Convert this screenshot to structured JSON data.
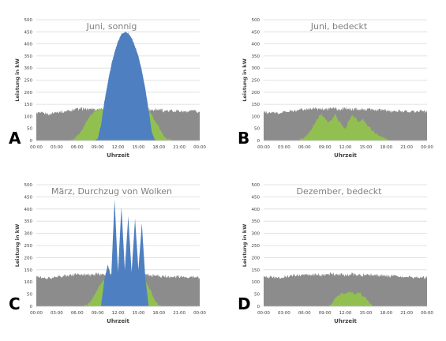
{
  "chart_data": [
    {
      "type": "area",
      "panel_letter": "A",
      "title": "Juni, sonnig",
      "xlabel": "Uhrzeit",
      "ylabel": "Leistung in kW",
      "ylim": [
        0,
        500
      ],
      "yticks": [
        "0",
        "50",
        "100",
        "150",
        "200",
        "250",
        "300",
        "350",
        "400",
        "450",
        "500"
      ],
      "xticks": [
        "00:00",
        "03:00",
        "06:00",
        "09:00",
        "12:00",
        "15:00",
        "18:00",
        "21:00",
        "00:00"
      ],
      "x_hours": [
        0,
        1,
        2,
        3,
        4,
        5,
        5.5,
        6,
        6.5,
        7,
        7.5,
        8,
        8.5,
        9,
        9.5,
        10,
        10.5,
        11,
        11.5,
        12,
        12.5,
        13,
        13.5,
        14,
        14.5,
        15,
        15.5,
        16,
        16.5,
        17,
        17.5,
        18,
        18.5,
        19,
        20,
        21,
        22,
        23,
        24
      ],
      "series": [
        {
          "values": [
            115,
            112,
            110,
            118,
            120,
            125,
            128,
            130,
            132,
            130,
            128,
            135,
            130,
            125,
            132,
            128,
            130,
            125,
            128,
            130,
            127,
            125,
            130,
            128,
            126,
            130,
            128,
            132,
            130,
            125,
            128,
            130,
            125,
            120,
            125,
            122,
            118,
            120,
            118
          ]
        },
        {
          "values": [
            0,
            0,
            0,
            0,
            0,
            0,
            5,
            15,
            35,
            60,
            85,
            105,
            120,
            125,
            130,
            128,
            132,
            126,
            130,
            128,
            130,
            128,
            132,
            125,
            130,
            128,
            130,
            125,
            120,
            105,
            80,
            55,
            30,
            10,
            0,
            0,
            0,
            0,
            0
          ]
        },
        {
          "values": [
            0,
            0,
            0,
            0,
            0,
            0,
            0,
            0,
            0,
            0,
            0,
            0,
            0,
            5,
            65,
            160,
            240,
            310,
            365,
            410,
            440,
            450,
            445,
            425,
            390,
            350,
            290,
            215,
            125,
            30,
            0,
            0,
            0,
            0,
            0,
            0,
            0,
            0,
            0
          ]
        }
      ]
    },
    {
      "type": "area",
      "panel_letter": "B",
      "title": "Juni, bedeckt",
      "xlabel": "Uhrzeit",
      "ylabel": "Leistung in kW",
      "ylim": [
        0,
        500
      ],
      "yticks": [
        "0",
        "50",
        "100",
        "150",
        "200",
        "250",
        "300",
        "350",
        "400",
        "450",
        "500"
      ],
      "xticks": [
        "00:00",
        "03:00",
        "06:00",
        "09:00",
        "12:00",
        "15:00",
        "18:00",
        "21:00",
        "00:00"
      ],
      "x_hours": [
        0,
        1,
        2,
        3,
        4,
        5,
        5.5,
        6,
        6.5,
        7,
        7.5,
        8,
        8.5,
        9,
        9.5,
        10,
        10.5,
        11,
        11.5,
        12,
        12.5,
        13,
        13.5,
        14,
        14.5,
        15,
        15.5,
        16,
        16.5,
        17,
        17.5,
        18,
        18.5,
        19,
        20,
        21,
        22,
        23,
        24
      ],
      "series": [
        {
          "values": [
            118,
            115,
            112,
            118,
            120,
            125,
            130,
            128,
            132,
            130,
            135,
            128,
            132,
            130,
            128,
            135,
            132,
            128,
            130,
            135,
            130,
            128,
            132,
            130,
            128,
            125,
            130,
            128,
            126,
            125,
            128,
            126,
            122,
            120,
            125,
            120,
            118,
            122,
            118
          ]
        },
        {
          "values": [
            0,
            0,
            0,
            0,
            0,
            0,
            5,
            12,
            25,
            45,
            70,
            95,
            110,
            90,
            75,
            85,
            110,
            80,
            65,
            45,
            85,
            105,
            95,
            75,
            90,
            70,
            55,
            40,
            30,
            20,
            12,
            5,
            0,
            0,
            0,
            0,
            0,
            0,
            0
          ]
        }
      ]
    },
    {
      "type": "area",
      "panel_letter": "C",
      "title": "März, Durchzug von Wolken",
      "xlabel": "Uhrzeit",
      "ylabel": "Leistung in kW",
      "ylim": [
        0,
        500
      ],
      "yticks": [
        "0",
        "50",
        "100",
        "150",
        "200",
        "250",
        "300",
        "350",
        "400",
        "450",
        "500"
      ],
      "xticks": [
        "00:00",
        "03:00",
        "06:00",
        "09:00",
        "12:00",
        "15:00",
        "18:00",
        "21:00",
        "00:00"
      ],
      "x_hours": [
        0,
        1,
        2,
        3,
        4,
        5,
        5.5,
        6,
        6.5,
        7,
        7.5,
        8,
        8.5,
        9,
        9.5,
        10,
        10.5,
        11,
        11.5,
        12,
        12.5,
        13,
        13.5,
        14,
        14.5,
        15,
        15.5,
        16,
        16.5,
        17,
        17.5,
        18,
        18.5,
        19,
        20,
        21,
        22,
        23,
        24
      ],
      "series": [
        {
          "values": [
            122,
            118,
            115,
            120,
            125,
            128,
            130,
            132,
            128,
            130,
            132,
            128,
            130,
            135,
            130,
            132,
            128,
            130,
            135,
            130,
            132,
            128,
            130,
            132,
            130,
            128,
            130,
            132,
            128,
            126,
            130,
            125,
            122,
            125,
            120,
            122,
            118,
            120,
            118
          ]
        },
        {
          "values": [
            0,
            0,
            0,
            0,
            0,
            0,
            0,
            0,
            0,
            0,
            5,
            20,
            45,
            70,
            95,
            110,
            125,
            120,
            135,
            115,
            140,
            125,
            130,
            115,
            135,
            120,
            110,
            105,
            80,
            50,
            20,
            5,
            0,
            0,
            0,
            0,
            0,
            0,
            0
          ]
        },
        {
          "values": [
            0,
            0,
            0,
            0,
            0,
            0,
            0,
            0,
            0,
            0,
            0,
            0,
            0,
            0,
            0,
            110,
            170,
            120,
            440,
            140,
            410,
            150,
            370,
            140,
            360,
            150,
            340,
            120,
            0,
            0,
            0,
            0,
            0,
            0,
            0,
            0,
            0,
            0,
            0
          ]
        }
      ]
    },
    {
      "type": "area",
      "panel_letter": "D",
      "title": "Dezember, bedeckt",
      "xlabel": "Uhrzeit",
      "ylabel": "Leistung in kW",
      "ylim": [
        0,
        500
      ],
      "yticks": [
        "0",
        "50",
        "100",
        "150",
        "200",
        "250",
        "300",
        "350",
        "400",
        "450",
        "500"
      ],
      "xticks": [
        "00:00",
        "03:00",
        "06:00",
        "09:00",
        "12:00",
        "15:00",
        "18:00",
        "21:00",
        "00:00"
      ],
      "x_hours": [
        0,
        1,
        2,
        3,
        4,
        5,
        5.5,
        6,
        6.5,
        7,
        7.5,
        8,
        8.5,
        9,
        9.5,
        10,
        10.5,
        11,
        11.5,
        12,
        12.5,
        13,
        13.5,
        14,
        14.5,
        15,
        15.5,
        16,
        16.5,
        17,
        17.5,
        18,
        18.5,
        19,
        20,
        21,
        22,
        23,
        24
      ],
      "series": [
        {
          "values": [
            118,
            120,
            115,
            122,
            125,
            128,
            130,
            132,
            128,
            130,
            132,
            130,
            128,
            132,
            130,
            135,
            128,
            130,
            132,
            128,
            130,
            132,
            128,
            130,
            128,
            132,
            128,
            130,
            128,
            125,
            128,
            126,
            122,
            125,
            120,
            122,
            118,
            120,
            118
          ]
        },
        {
          "values": [
            0,
            0,
            0,
            0,
            0,
            0,
            0,
            0,
            0,
            0,
            0,
            0,
            0,
            0,
            0,
            10,
            30,
            45,
            55,
            50,
            60,
            55,
            50,
            60,
            45,
            35,
            15,
            0,
            0,
            0,
            0,
            0,
            0,
            0,
            0,
            0,
            0,
            0,
            0
          ]
        }
      ]
    }
  ],
  "colors": {
    "grid_load": "#8c8c8c",
    "pv_self_consumption": "#92c050",
    "pv_excess": "#4e7fc1",
    "gridline": "#d9d9d9",
    "axis": "#bfbfbf",
    "tick_text": "#404040",
    "title_text": "#7f7f7f",
    "letter_text": "#000000"
  }
}
